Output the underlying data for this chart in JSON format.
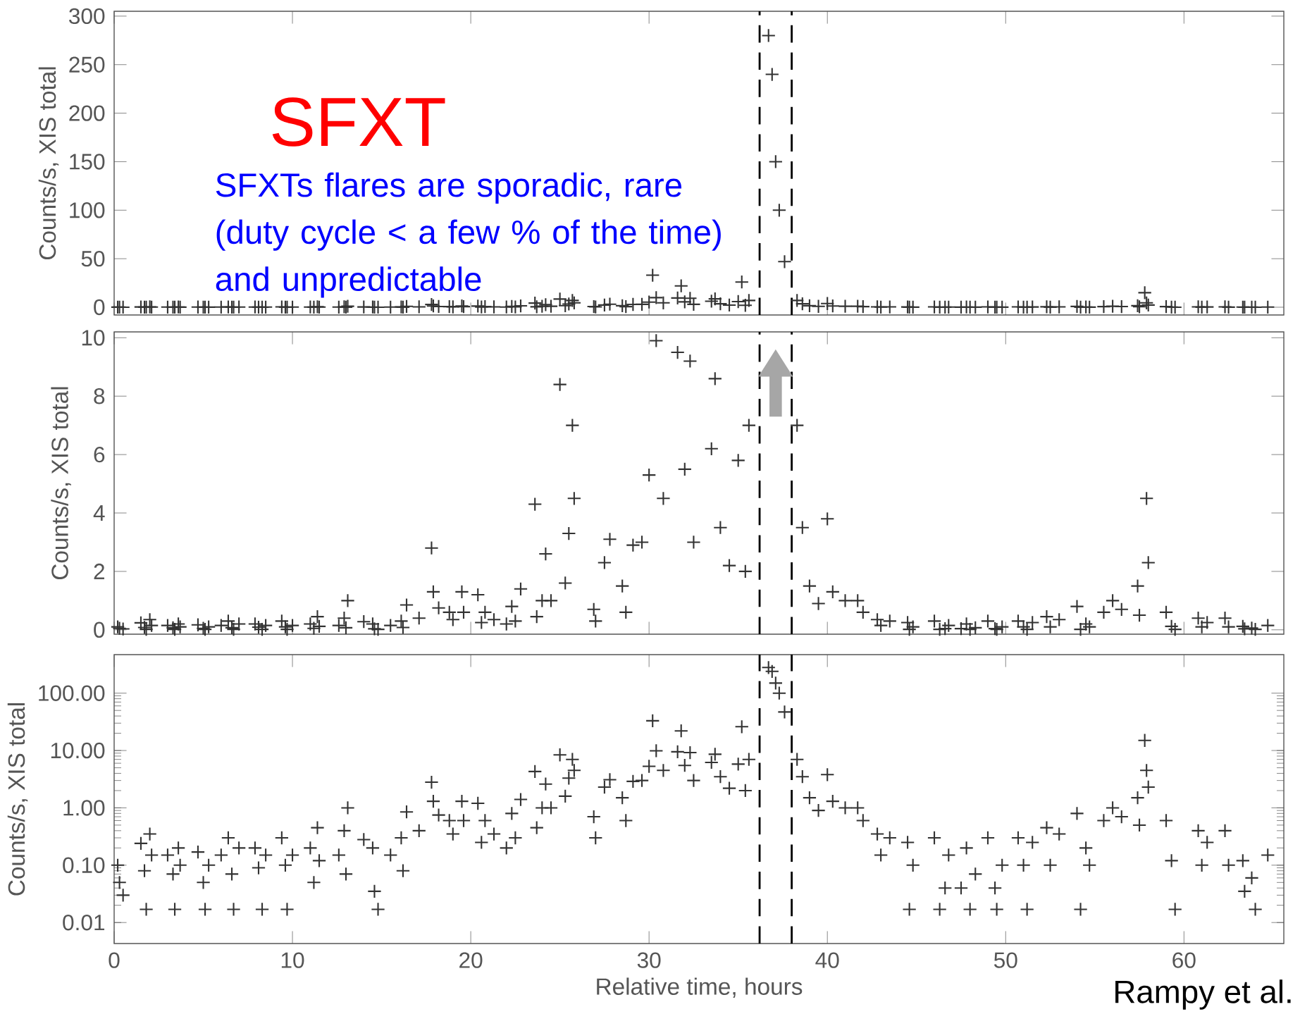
{
  "chart_data": [
    {
      "type": "scatter",
      "ylabel": "Counts/s, XIS total",
      "marker": "cross",
      "color": "#333333",
      "tick_labels": "y",
      "annotations": [
        "SFXT",
        "SFXTs  flares are sporadic, rare (duty cycle < a few % of the time) and unpredictable"
      ],
      "xlim": [
        0,
        65.6
      ],
      "xticks": [
        0,
        10,
        20,
        30,
        40,
        50,
        60
      ],
      "ylim": [
        -8,
        305
      ],
      "yticks": [
        0,
        50,
        100,
        150,
        200,
        250,
        300
      ],
      "ref_lines": [
        {
          "axis": "x",
          "value": 36.2,
          "line_style": "dashed"
        },
        {
          "axis": "x",
          "value": 38.0,
          "line_style": "dashed"
        }
      ],
      "x": [
        0.2,
        0.3,
        0.5,
        1.5,
        1.7,
        1.8,
        2.0,
        2.1,
        3.0,
        3.3,
        3.4,
        3.6,
        3.7,
        4.7,
        5.0,
        5.1,
        5.3,
        6.0,
        6.4,
        6.6,
        6.7,
        7.0,
        7.9,
        8.1,
        8.3,
        8.5,
        9.4,
        9.6,
        9.7,
        10.0,
        11.0,
        11.2,
        11.4,
        11.5,
        12.6,
        12.9,
        13.0,
        13.1,
        14.0,
        14.5,
        14.6,
        14.8,
        15.5,
        16.1,
        16.2,
        16.4,
        17.1,
        17.8,
        17.9,
        18.2,
        18.8,
        19.0,
        19.5,
        19.6,
        20.4,
        20.6,
        20.8,
        21.3,
        22.0,
        22.3,
        22.5,
        22.8,
        23.6,
        23.7,
        24.0,
        24.2,
        24.5,
        25.0,
        25.3,
        25.5,
        25.7,
        25.8,
        26.9,
        27.0,
        27.5,
        27.8,
        28.5,
        28.7,
        29.1,
        29.6,
        30.0,
        30.2,
        30.4,
        30.8,
        31.6,
        31.8,
        32.0,
        32.3,
        32.5,
        33.5,
        33.7,
        34.0,
        34.5,
        35.0,
        35.2,
        35.4,
        35.6,
        36.7,
        36.9,
        37.1,
        37.3,
        37.6,
        38.3,
        38.6,
        39.0,
        39.5,
        40.0,
        40.3,
        41.0,
        41.7,
        42.0,
        42.8,
        43.0,
        43.5,
        44.5,
        44.6,
        44.8,
        46.0,
        46.3,
        46.6,
        46.8,
        47.5,
        47.8,
        48.0,
        48.3,
        49.0,
        49.4,
        49.5,
        49.8,
        50.7,
        51.0,
        51.2,
        51.5,
        52.3,
        52.5,
        53.0,
        54.0,
        54.2,
        54.5,
        54.7,
        55.5,
        56.0,
        56.5,
        57.4,
        57.5,
        57.8,
        57.9,
        58.0,
        59.0,
        59.3,
        59.5,
        60.8,
        61.0,
        61.3,
        62.3,
        62.5,
        63.3,
        63.4,
        63.8,
        64.0,
        64.7
      ],
      "values": [
        0.1,
        0.05,
        0.03,
        0.24,
        0.08,
        0.017,
        0.35,
        0.15,
        0.15,
        0.07,
        0.017,
        0.2,
        0.1,
        0.17,
        0.05,
        0.017,
        0.1,
        0.15,
        0.3,
        0.07,
        0.017,
        0.2,
        0.2,
        0.09,
        0.017,
        0.15,
        0.3,
        0.1,
        0.017,
        0.15,
        0.2,
        0.05,
        0.45,
        0.12,
        0.15,
        0.4,
        0.07,
        1.0,
        0.28,
        0.2,
        0.035,
        0.017,
        0.15,
        0.3,
        0.08,
        0.85,
        0.4,
        2.8,
        1.3,
        0.75,
        0.6,
        0.35,
        1.3,
        0.6,
        1.2,
        0.25,
        0.6,
        0.35,
        0.2,
        0.8,
        0.3,
        1.4,
        4.3,
        0.45,
        1.0,
        2.6,
        1.0,
        8.4,
        1.6,
        3.3,
        7.0,
        4.5,
        0.7,
        0.3,
        2.3,
        3.1,
        1.5,
        0.6,
        2.9,
        3.0,
        5.3,
        33,
        9.9,
        4.5,
        9.5,
        22,
        5.5,
        9.2,
        3.0,
        6.2,
        8.6,
        3.5,
        2.2,
        5.8,
        26,
        2.0,
        7.0,
        280,
        240,
        150,
        100,
        47,
        7.0,
        3.5,
        1.5,
        0.9,
        3.8,
        1.3,
        1.0,
        1.0,
        0.6,
        0.35,
        0.15,
        0.3,
        0.25,
        0.017,
        0.1,
        0.3,
        0.017,
        0.04,
        0.15,
        0.04,
        0.2,
        0.017,
        0.07,
        0.3,
        0.04,
        0.017,
        0.1,
        0.3,
        0.1,
        0.017,
        0.25,
        0.45,
        0.1,
        0.35,
        0.8,
        0.017,
        0.2,
        0.1,
        0.6,
        1.0,
        0.7,
        1.5,
        0.5,
        15,
        4.5,
        2.3,
        0.6,
        0.12,
        0.017,
        0.4,
        0.1,
        0.25,
        0.4,
        0.1,
        0.12,
        0.035,
        0.06,
        0.017,
        0.15
      ]
    },
    {
      "type": "scatter",
      "ylabel": "Counts/s, XIS total",
      "marker": "cross",
      "color": "#333333",
      "tick_labels": "y",
      "xlim": [
        0,
        65.6
      ],
      "xticks": [
        0,
        10,
        20,
        30,
        40,
        50,
        60
      ],
      "ylim": [
        -0.15,
        10.2
      ],
      "yticks": [
        0,
        2,
        4,
        6,
        8,
        10
      ],
      "ref_lines": [
        {
          "axis": "x",
          "value": 36.2,
          "line_style": "dashed"
        },
        {
          "axis": "x",
          "value": 38.0,
          "line_style": "dashed"
        }
      ],
      "x": [
        0.2,
        0.3,
        0.5,
        1.5,
        1.7,
        1.8,
        2.0,
        2.1,
        3.0,
        3.3,
        3.4,
        3.6,
        3.7,
        4.7,
        5.0,
        5.1,
        5.3,
        6.0,
        6.4,
        6.6,
        6.7,
        7.0,
        7.9,
        8.1,
        8.3,
        8.5,
        9.4,
        9.6,
        9.7,
        10.0,
        11.0,
        11.2,
        11.4,
        11.5,
        12.6,
        12.9,
        13.0,
        13.1,
        14.0,
        14.5,
        14.6,
        14.8,
        15.5,
        16.1,
        16.2,
        16.4,
        17.1,
        17.8,
        17.9,
        18.2,
        18.8,
        19.0,
        19.5,
        19.6,
        20.4,
        20.6,
        20.8,
        21.3,
        22.0,
        22.3,
        22.5,
        22.8,
        23.6,
        23.7,
        24.0,
        24.2,
        24.5,
        25.0,
        25.3,
        25.5,
        25.7,
        25.8,
        26.9,
        27.0,
        27.5,
        27.8,
        28.5,
        28.7,
        29.1,
        29.6,
        30.0,
        30.2,
        30.4,
        30.8,
        31.6,
        31.8,
        32.0,
        32.3,
        32.5,
        33.5,
        33.7,
        34.0,
        34.5,
        35.0,
        35.2,
        35.4,
        35.6,
        36.7,
        36.9,
        37.1,
        37.3,
        37.6,
        38.3,
        38.6,
        39.0,
        39.5,
        40.0,
        40.3,
        41.0,
        41.7,
        42.0,
        42.8,
        43.0,
        43.5,
        44.5,
        44.6,
        44.8,
        46.0,
        46.3,
        46.6,
        46.8,
        47.5,
        47.8,
        48.0,
        48.3,
        49.0,
        49.4,
        49.5,
        49.8,
        50.7,
        51.0,
        51.2,
        51.5,
        52.3,
        52.5,
        53.0,
        54.0,
        54.2,
        54.5,
        54.7,
        55.5,
        56.0,
        56.5,
        57.4,
        57.5,
        57.8,
        57.9,
        58.0,
        59.0,
        59.3,
        59.5,
        60.8,
        61.0,
        61.3,
        62.3,
        62.5,
        63.3,
        63.4,
        63.8,
        64.0,
        64.7
      ],
      "values": [
        0.1,
        0.05,
        0.03,
        0.24,
        0.08,
        0.017,
        0.35,
        0.15,
        0.15,
        0.07,
        0.017,
        0.2,
        0.1,
        0.17,
        0.05,
        0.017,
        0.1,
        0.15,
        0.3,
        0.07,
        0.017,
        0.2,
        0.2,
        0.09,
        0.017,
        0.15,
        0.3,
        0.1,
        0.017,
        0.15,
        0.2,
        0.05,
        0.45,
        0.12,
        0.15,
        0.4,
        0.07,
        1.0,
        0.28,
        0.2,
        0.035,
        0.017,
        0.15,
        0.3,
        0.08,
        0.85,
        0.4,
        2.8,
        1.3,
        0.75,
        0.6,
        0.35,
        1.3,
        0.6,
        1.2,
        0.25,
        0.6,
        0.35,
        0.2,
        0.8,
        0.3,
        1.4,
        4.3,
        0.45,
        1.0,
        2.6,
        1.0,
        8.4,
        1.6,
        3.3,
        7.0,
        4.5,
        0.7,
        0.3,
        2.3,
        3.1,
        1.5,
        0.6,
        2.9,
        3.0,
        5.3,
        null,
        9.9,
        4.5,
        9.5,
        null,
        5.5,
        9.2,
        3.0,
        6.2,
        8.6,
        3.5,
        2.2,
        5.8,
        null,
        2.0,
        7.0,
        null,
        null,
        null,
        null,
        null,
        7.0,
        3.5,
        1.5,
        0.9,
        3.8,
        1.3,
        1.0,
        1.0,
        0.6,
        0.35,
        0.15,
        0.3,
        0.25,
        0.017,
        0.1,
        0.3,
        0.017,
        0.04,
        0.15,
        0.04,
        0.2,
        0.017,
        0.07,
        0.3,
        0.04,
        0.017,
        0.1,
        0.3,
        0.1,
        0.017,
        0.25,
        0.45,
        0.1,
        0.35,
        0.8,
        0.017,
        0.2,
        0.1,
        0.6,
        1.0,
        0.7,
        1.5,
        0.5,
        null,
        4.5,
        2.3,
        0.6,
        0.12,
        0.017,
        0.4,
        0.1,
        0.25,
        0.4,
        0.1,
        0.12,
        0.035,
        0.06,
        0.017,
        0.15
      ]
    },
    {
      "type": "scatter",
      "ylabel": "Counts/s, XIS total",
      "xlabel": "Relative time, hours",
      "marker": "cross",
      "color": "#333333",
      "log": "y",
      "annotations": [
        "Rampy et al."
      ],
      "xlim": [
        0,
        65.6
      ],
      "xticks": [
        0,
        10,
        20,
        30,
        40,
        50,
        60
      ],
      "ylim": [
        0.0043,
        470
      ],
      "yticks": [
        {
          "value": 0.01,
          "label": "0.01"
        },
        {
          "value": 0.1,
          "label": "0.10"
        },
        {
          "value": 1,
          "label": "1.00"
        },
        {
          "value": 10,
          "label": "10.00"
        },
        {
          "value": 100,
          "label": "100.00"
        }
      ],
      "ref_lines": [
        {
          "axis": "x",
          "value": 36.2,
          "line_style": "dashed"
        },
        {
          "axis": "x",
          "value": 38.0,
          "line_style": "dashed"
        }
      ],
      "x": [
        0.2,
        0.3,
        0.5,
        1.5,
        1.7,
        1.8,
        2.0,
        2.1,
        3.0,
        3.3,
        3.4,
        3.6,
        3.7,
        4.7,
        5.0,
        5.1,
        5.3,
        6.0,
        6.4,
        6.6,
        6.7,
        7.0,
        7.9,
        8.1,
        8.3,
        8.5,
        9.4,
        9.6,
        9.7,
        10.0,
        11.0,
        11.2,
        11.4,
        11.5,
        12.6,
        12.9,
        13.0,
        13.1,
        14.0,
        14.5,
        14.6,
        14.8,
        15.5,
        16.1,
        16.2,
        16.4,
        17.1,
        17.8,
        17.9,
        18.2,
        18.8,
        19.0,
        19.5,
        19.6,
        20.4,
        20.6,
        20.8,
        21.3,
        22.0,
        22.3,
        22.5,
        22.8,
        23.6,
        23.7,
        24.0,
        24.2,
        24.5,
        25.0,
        25.3,
        25.5,
        25.7,
        25.8,
        26.9,
        27.0,
        27.5,
        27.8,
        28.5,
        28.7,
        29.1,
        29.6,
        30.0,
        30.2,
        30.4,
        30.8,
        31.6,
        31.8,
        32.0,
        32.3,
        32.5,
        33.5,
        33.7,
        34.0,
        34.5,
        35.0,
        35.2,
        35.4,
        35.6,
        36.7,
        36.9,
        37.1,
        37.3,
        37.6,
        38.3,
        38.6,
        39.0,
        39.5,
        40.0,
        40.3,
        41.0,
        41.7,
        42.0,
        42.8,
        43.0,
        43.5,
        44.5,
        44.6,
        44.8,
        46.0,
        46.3,
        46.6,
        46.8,
        47.5,
        47.8,
        48.0,
        48.3,
        49.0,
        49.4,
        49.5,
        49.8,
        50.7,
        51.0,
        51.2,
        51.5,
        52.3,
        52.5,
        53.0,
        54.0,
        54.2,
        54.5,
        54.7,
        55.5,
        56.0,
        56.5,
        57.4,
        57.5,
        57.8,
        57.9,
        58.0,
        59.0,
        59.3,
        59.5,
        60.8,
        61.0,
        61.3,
        62.3,
        62.5,
        63.3,
        63.4,
        63.8,
        64.0,
        64.7
      ],
      "values": [
        0.1,
        0.05,
        0.03,
        0.24,
        0.08,
        0.017,
        0.35,
        0.15,
        0.15,
        0.07,
        0.017,
        0.2,
        0.1,
        0.17,
        0.05,
        0.017,
        0.1,
        0.15,
        0.3,
        0.07,
        0.017,
        0.2,
        0.2,
        0.09,
        0.017,
        0.15,
        0.3,
        0.1,
        0.017,
        0.15,
        0.2,
        0.05,
        0.45,
        0.12,
        0.15,
        0.4,
        0.07,
        1.0,
        0.28,
        0.2,
        0.035,
        0.017,
        0.15,
        0.3,
        0.08,
        0.85,
        0.4,
        2.8,
        1.3,
        0.75,
        0.6,
        0.35,
        1.3,
        0.6,
        1.2,
        0.25,
        0.6,
        0.35,
        0.2,
        0.8,
        0.3,
        1.4,
        4.3,
        0.45,
        1.0,
        2.6,
        1.0,
        8.4,
        1.6,
        3.3,
        7.0,
        4.5,
        0.7,
        0.3,
        2.3,
        3.1,
        1.5,
        0.6,
        2.9,
        3.0,
        5.3,
        33,
        9.9,
        4.5,
        9.5,
        22,
        5.5,
        9.2,
        3.0,
        6.2,
        8.6,
        3.5,
        2.2,
        5.8,
        26,
        2.0,
        7.0,
        280,
        240,
        150,
        100,
        47,
        7.0,
        3.5,
        1.5,
        0.9,
        3.8,
        1.3,
        1.0,
        1.0,
        0.6,
        0.35,
        0.15,
        0.3,
        0.25,
        0.017,
        0.1,
        0.3,
        0.017,
        0.04,
        0.15,
        0.04,
        0.2,
        0.017,
        0.07,
        0.3,
        0.04,
        0.017,
        0.1,
        0.3,
        0.1,
        0.017,
        0.25,
        0.45,
        0.1,
        0.35,
        0.8,
        0.017,
        0.2,
        0.1,
        0.6,
        1.0,
        0.7,
        1.5,
        0.5,
        15,
        4.5,
        2.3,
        0.6,
        0.12,
        0.017,
        0.4,
        0.1,
        0.25,
        0.4,
        0.1,
        0.12,
        0.035,
        0.06,
        0.017,
        0.15
      ]
    }
  ]
}
